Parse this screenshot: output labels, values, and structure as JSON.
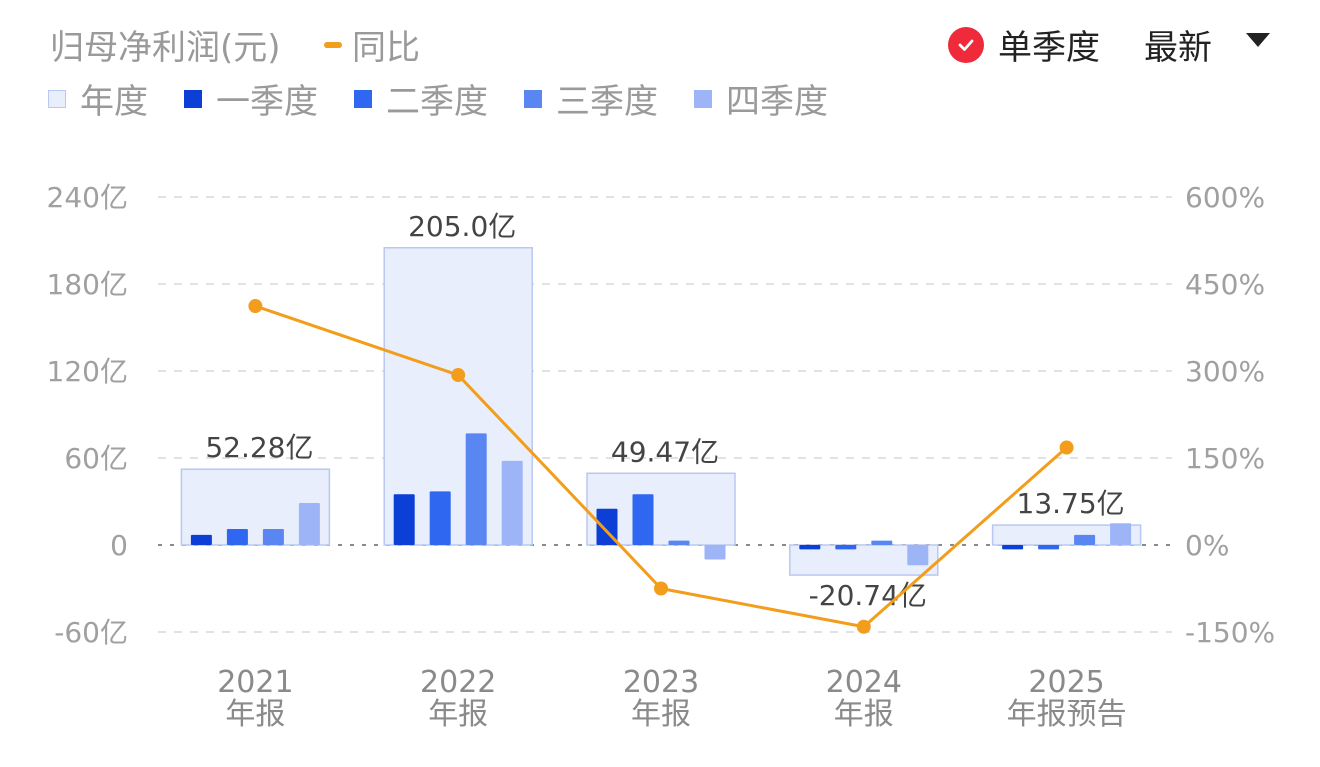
{
  "header": {
    "title": "归母净利润(元)",
    "yoy_label": "同比",
    "single_quarter_label": "单季度",
    "latest_label": "最新"
  },
  "legend": [
    {
      "label": "年度",
      "color": "#e8eefc",
      "border": "#b9c8f0"
    },
    {
      "label": "一季度",
      "color": "#0b3fd6"
    },
    {
      "label": "二季度",
      "color": "#2f67f0"
    },
    {
      "label": "三季度",
      "color": "#5a86f2"
    },
    {
      "label": "四季度",
      "color": "#9db5f7"
    }
  ],
  "colors": {
    "annual_fill": "#e8eefc",
    "annual_stroke": "#b9c8f0",
    "line": "#f29d1b",
    "grid": "#e2e2e2",
    "zero": "#8a8a8a"
  },
  "chart_data": {
    "type": "bar",
    "categories": [
      {
        "year": "2021",
        "sub": "年报"
      },
      {
        "year": "2022",
        "sub": "年报"
      },
      {
        "year": "2023",
        "sub": "年报"
      },
      {
        "year": "2024",
        "sub": "年报"
      },
      {
        "year": "2025",
        "sub": "年报预告"
      }
    ],
    "annual": [
      52.28,
      205.0,
      49.47,
      -20.74,
      13.75
    ],
    "annual_labels": [
      "52.28亿",
      "205.0亿",
      "49.47亿",
      "-20.74亿",
      "13.75亿"
    ],
    "quarters": [
      [
        7,
        11,
        11,
        29
      ],
      [
        35,
        37,
        77,
        58
      ],
      [
        25,
        35,
        3,
        -10
      ],
      [
        -3,
        -3,
        3,
        -14
      ],
      [
        -3,
        -3,
        7,
        15
      ]
    ],
    "yoy_percent": [
      412,
      293,
      -75,
      -141,
      168
    ],
    "left_axis": {
      "ticks": [
        "240亿",
        "180亿",
        "120亿",
        "60亿",
        "0",
        "-60亿"
      ],
      "values": [
        240,
        180,
        120,
        60,
        0,
        -60
      ],
      "ylim": [
        -60,
        240
      ]
    },
    "right_axis": {
      "ticks": [
        "600%",
        "450%",
        "300%",
        "150%",
        "0%",
        "-150%"
      ],
      "values": [
        600,
        450,
        300,
        150,
        0,
        -150
      ],
      "ylim": [
        -150,
        600
      ]
    },
    "grid": true
  }
}
